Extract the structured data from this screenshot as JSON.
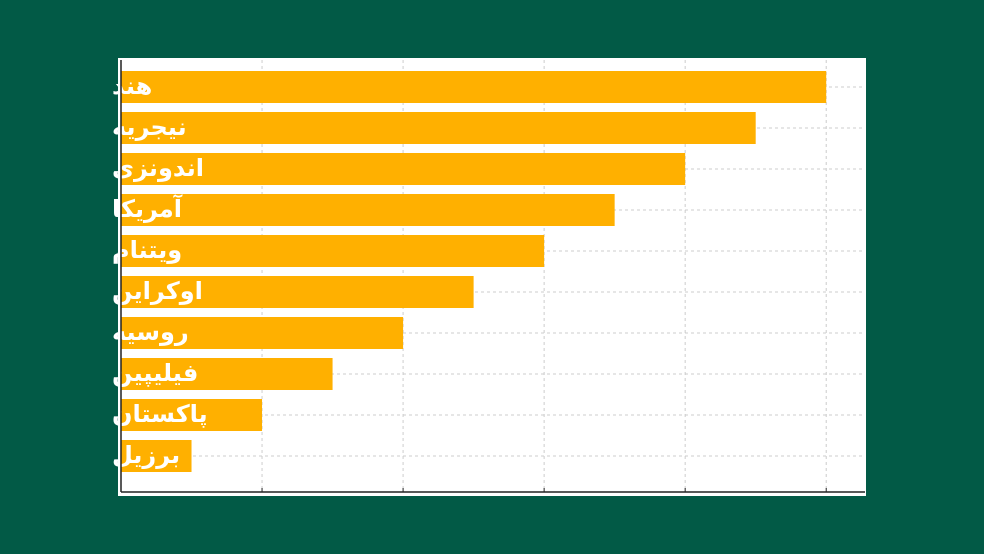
{
  "chart_data": {
    "type": "barh",
    "categories": [
      "هند",
      "نیجریه",
      "اندونزی",
      "آمریکا",
      "ویتنام",
      "اوکراین",
      "روسیه",
      "فیلیپین",
      "پاکستان",
      "برزیل"
    ],
    "values": [
      10,
      9,
      8,
      7,
      6,
      5,
      4,
      3,
      2,
      1
    ],
    "color": "#ffb000",
    "xlim": [
      0,
      10.55
    ],
    "xticks": [
      0,
      2,
      4,
      6,
      8,
      10
    ],
    "grid": true
  }
}
